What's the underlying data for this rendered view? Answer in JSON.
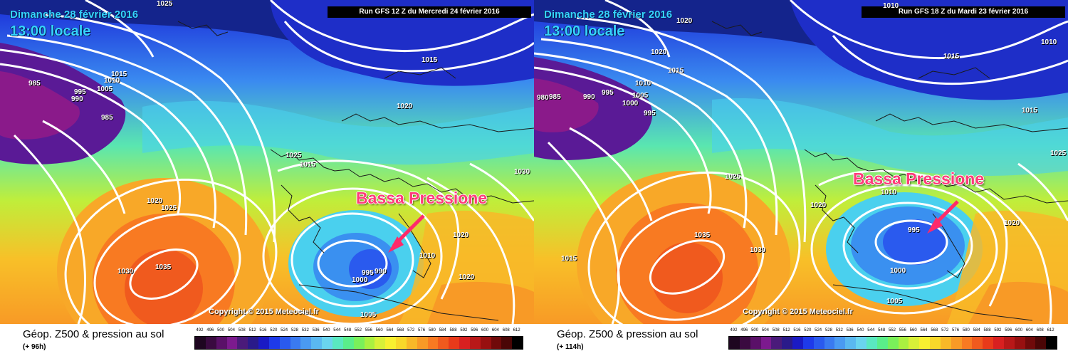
{
  "colour_scale": {
    "values": [
      "492",
      "496",
      "500",
      "504",
      "508",
      "512",
      "516",
      "520",
      "524",
      "528",
      "532",
      "536",
      "540",
      "544",
      "548",
      "552",
      "556",
      "560",
      "564",
      "568",
      "572",
      "576",
      "580",
      "584",
      "588",
      "592",
      "596",
      "600",
      "604",
      "608",
      "612"
    ],
    "colors": [
      "#1e0620",
      "#3a0a40",
      "#5a1068",
      "#7c1a8e",
      "#4a1a7a",
      "#2a1a8a",
      "#1a1ac4",
      "#1e3aea",
      "#2a5aee",
      "#3a7af0",
      "#4a9af2",
      "#5ab8f0",
      "#6ad4ee",
      "#5ae8c0",
      "#5aee8a",
      "#7af05a",
      "#aaf040",
      "#d8f038",
      "#f8f030",
      "#f8d82a",
      "#f8b828",
      "#f89a26",
      "#f87a22",
      "#f05a1e",
      "#e83a1a",
      "#d82020",
      "#b81818",
      "#981010",
      "#700a0a",
      "#4a0606",
      "#000000"
    ]
  },
  "panels": [
    {
      "date": "Dimanche 28 février 2016",
      "time": "13:00 locale",
      "run": "Run GFS 12 Z du Mercredi 24 février 2016",
      "copyright": "Copyright © 2015 Meteociel.fr",
      "annotation": "Bassa Pressione",
      "title": "Géop. Z500 & pression au sol",
      "subtitle": "(+ 96h)",
      "isobar_labels": [
        "1025",
        "985",
        "1015",
        "1010",
        "995",
        "1005",
        "990",
        "985",
        "1015",
        "1020",
        "1025",
        "1015",
        "1030",
        "1020",
        "1025",
        "1020",
        "1010",
        "1030",
        "1035",
        "995",
        "990",
        "1000",
        "1020",
        "1005"
      ]
    },
    {
      "date": "Dimanche 28 février 2016",
      "time": "13:00 locale",
      "run": "Run GFS 18 Z du Mardi 23 février 2016",
      "copyright": "Copyright © 2015 Meteociel.fr",
      "annotation": "Bassa Pressione",
      "title": "Géop. Z500 & pression au sol",
      "subtitle": "(+ 114h)",
      "isobar_labels": [
        "1010",
        "1020",
        "1010",
        "1020",
        "985",
        "980",
        "990",
        "995",
        "1005",
        "1000",
        "1010",
        "995",
        "1015",
        "1015",
        "1015",
        "1025",
        "1025",
        "1020",
        "1010",
        "1020",
        "1035",
        "1030",
        "995",
        "1000",
        "1015",
        "1005"
      ]
    }
  ]
}
